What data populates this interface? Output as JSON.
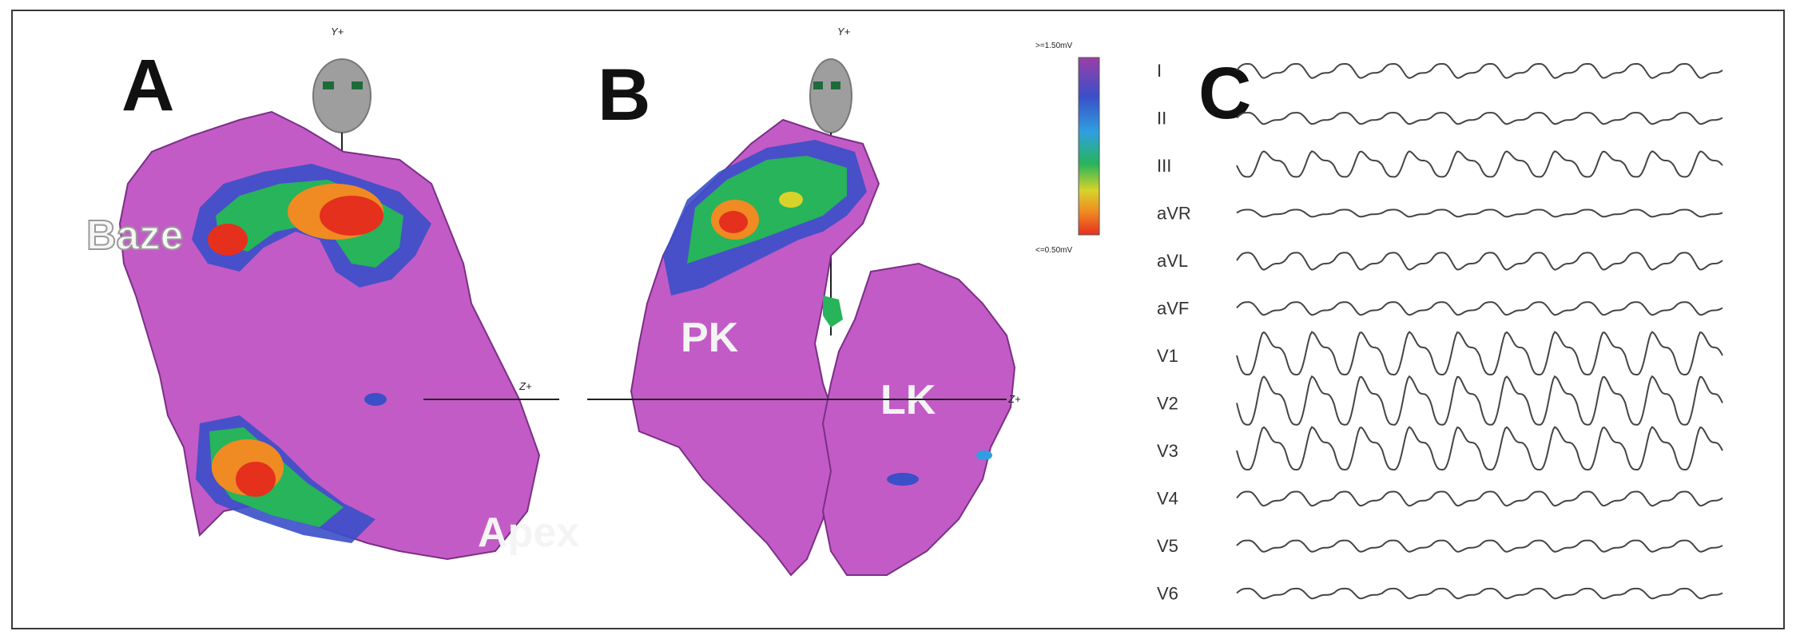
{
  "panels": {
    "a": {
      "letter": "A",
      "base_label": "Baze",
      "apex_label": "Apex",
      "y_axis": "Y+",
      "z_axis": "Z+"
    },
    "b": {
      "letter": "B",
      "pk_label": "PK",
      "lk_label": "LK",
      "y_axis": "Y+",
      "z_axis": "Z+"
    },
    "c": {
      "letter": "C"
    }
  },
  "voltage_scale": {
    "max_label": ">=1.50mV",
    "min_label": "<=0.50mV",
    "colors": [
      "#9b3fa6",
      "#3a4fc8",
      "#2f9fe0",
      "#27b45a",
      "#d8d32a",
      "#f08a22",
      "#e5301e"
    ]
  },
  "ecg": {
    "leads": [
      "I",
      "II",
      "III",
      "aVR",
      "aVL",
      "aVF",
      "V1",
      "V2",
      "V3",
      "V4",
      "V5",
      "V6"
    ],
    "amplitudes": [
      10,
      8,
      18,
      5,
      12,
      9,
      30,
      34,
      30,
      10,
      8,
      7
    ],
    "inverted": [
      false,
      false,
      true,
      false,
      false,
      false,
      true,
      true,
      true,
      false,
      false,
      false
    ],
    "beats": 10
  }
}
